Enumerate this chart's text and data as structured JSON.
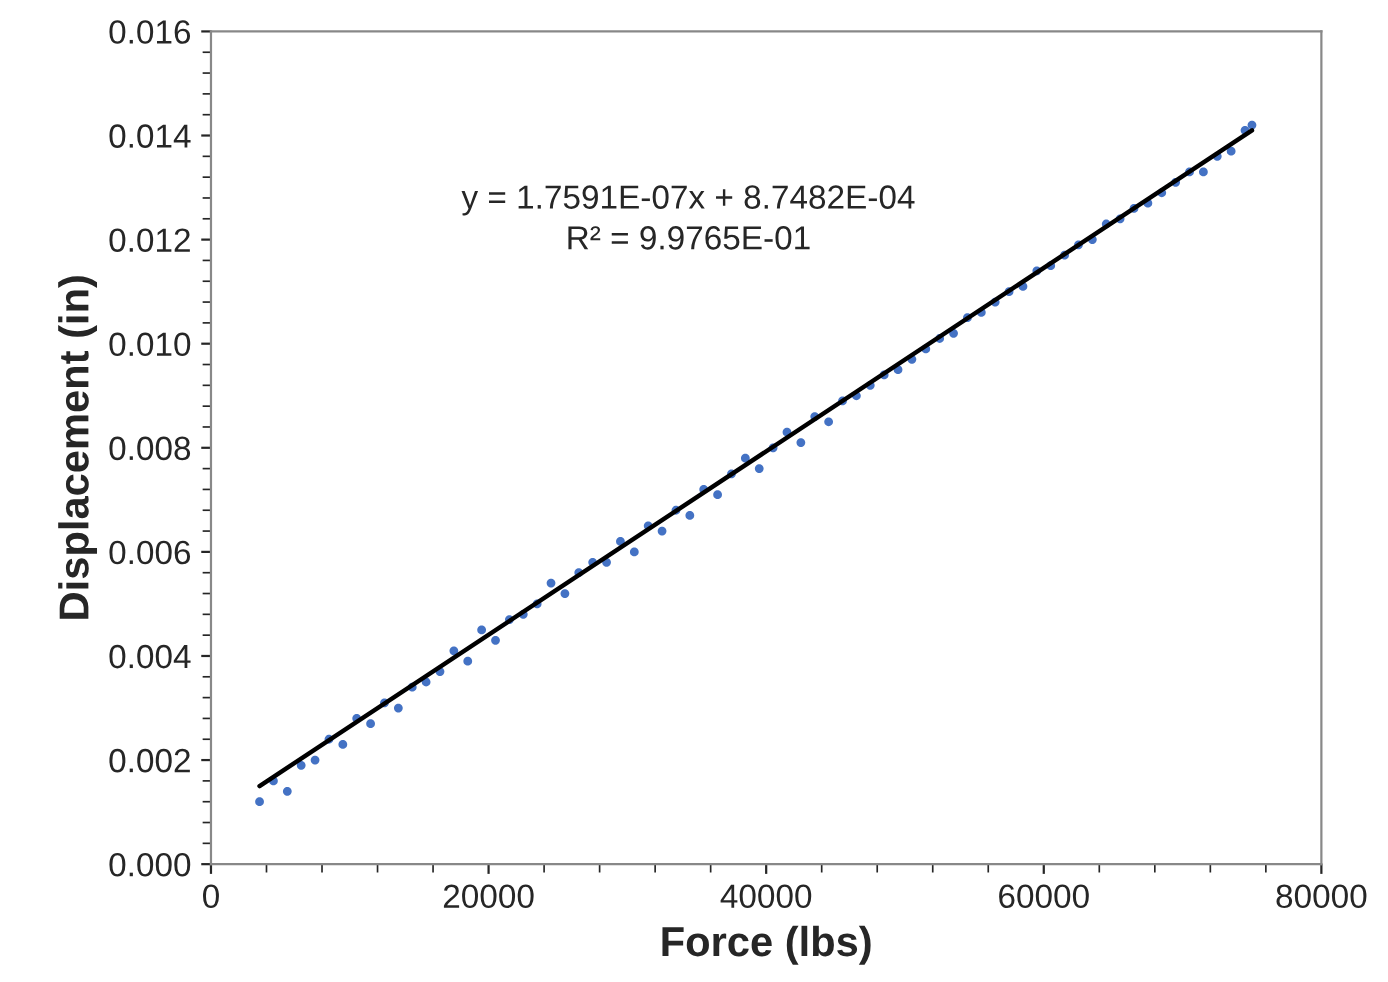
{
  "chart_data": {
    "type": "scatter",
    "xlabel": "Force (lbs)",
    "ylabel": "Displacement (in)",
    "annotations": [
      "y = 1.7591E-07x + 8.7482E-04",
      "R² = 9.9765E-01"
    ],
    "series": [
      {
        "color": "#4472c4",
        "marker": "circle",
        "x": [
          3500,
          4500,
          5500,
          6500,
          7500,
          8500,
          9500,
          10500,
          11500,
          12500,
          13500,
          14500,
          15500,
          16500,
          17500,
          18500,
          19500,
          20500,
          21500,
          22500,
          23500,
          24500,
          25500,
          26500,
          27500,
          28500,
          29500,
          30500,
          31500,
          32500,
          33500,
          34500,
          35500,
          36500,
          37500,
          38500,
          39500,
          40500,
          41500,
          42500,
          43500,
          44500,
          45500,
          46500,
          47500,
          48500,
          49500,
          50500,
          51500,
          52500,
          53500,
          54500,
          55500,
          56500,
          57500,
          58500,
          59500,
          60500,
          61500,
          62500,
          63500,
          64500,
          65500,
          66500,
          67500,
          68500,
          69500,
          70500,
          71500,
          72500,
          73500,
          74500,
          75000
        ],
        "values": [
          0.0012,
          0.0016,
          0.0014,
          0.0019,
          0.002,
          0.0024,
          0.0023,
          0.0028,
          0.0027,
          0.0031,
          0.003,
          0.0034,
          0.0035,
          0.0037,
          0.0041,
          0.0039,
          0.0045,
          0.0043,
          0.0047,
          0.0048,
          0.005,
          0.0054,
          0.0052,
          0.0056,
          0.0058,
          0.0058,
          0.0062,
          0.006,
          0.0065,
          0.0064,
          0.0068,
          0.0067,
          0.0072,
          0.0071,
          0.0075,
          0.0078,
          0.0076,
          0.008,
          0.0083,
          0.0081,
          0.0086,
          0.0085,
          0.0089,
          0.009,
          0.0092,
          0.0094,
          0.0095,
          0.0097,
          0.0099,
          0.0101,
          0.0102,
          0.0105,
          0.0106,
          0.0108,
          0.011,
          0.0111,
          0.0114,
          0.0115,
          0.0117,
          0.0119,
          0.012,
          0.0123,
          0.0124,
          0.0126,
          0.0127,
          0.0129,
          0.0131,
          0.0133,
          0.0133,
          0.0136,
          0.0137,
          0.0141,
          0.0142
        ]
      },
      {
        "type": "line",
        "color": "#000000",
        "line_style": "solid",
        "x": [
          3500,
          75000
        ],
        "values": [
          0.0015,
          0.0141
        ]
      }
    ],
    "xlim": [
      0,
      80000
    ],
    "xticks": [
      0,
      20000,
      40000,
      60000,
      80000
    ],
    "ylim": [
      0,
      0.016
    ],
    "yticks": [
      {
        "value": 0,
        "label": "0.000"
      },
      {
        "value": 0.002,
        "label": "0.002"
      },
      {
        "value": 0.004,
        "label": "0.004"
      },
      {
        "value": 0.006,
        "label": "0.006"
      },
      {
        "value": 0.008,
        "label": "0.008"
      },
      {
        "value": 0.01,
        "label": "0.010"
      },
      {
        "value": 0.012,
        "label": "0.012"
      },
      {
        "value": 0.014,
        "label": "0.014"
      },
      {
        "value": 0.016,
        "label": "0.016"
      }
    ]
  }
}
